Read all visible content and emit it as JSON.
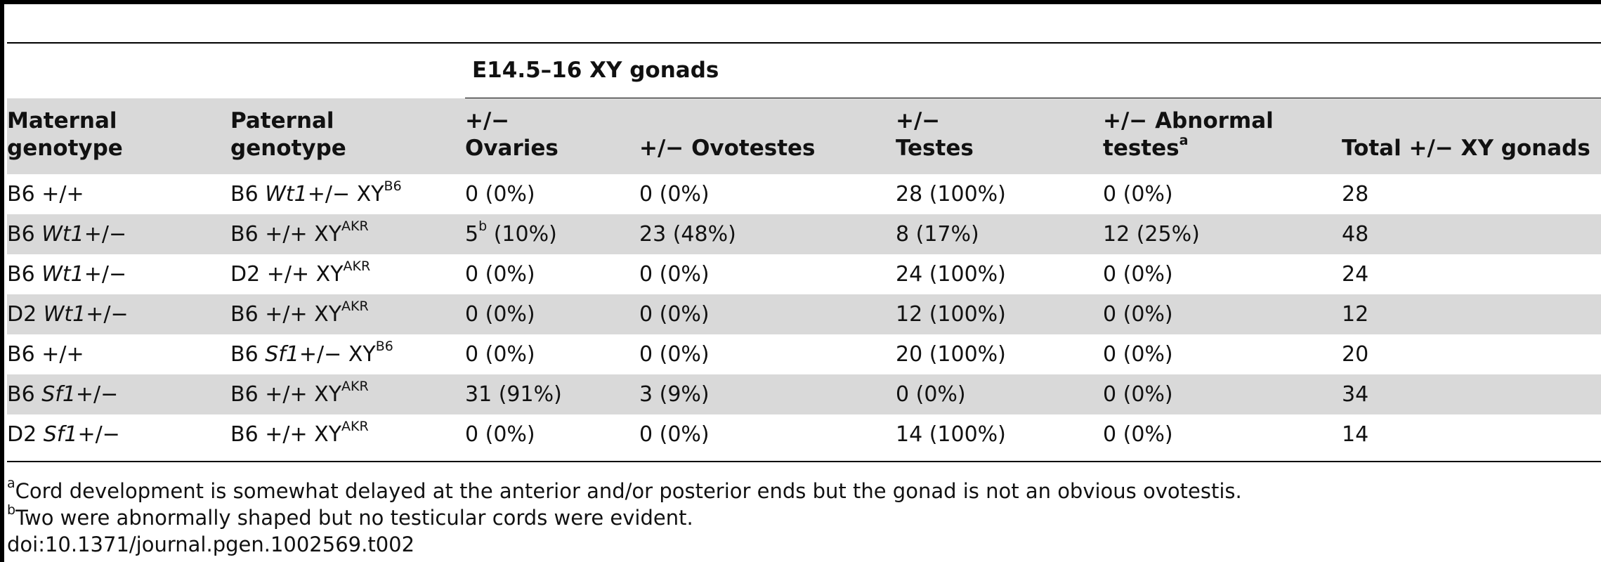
{
  "table": {
    "spanner": "E14.5–16 XY gonads",
    "headers": {
      "maternal": [
        "Maternal",
        "genotype"
      ],
      "paternal": [
        "Paternal",
        "genotype"
      ],
      "ovaries": [
        "+/−",
        "Ovaries"
      ],
      "ovotestes": "+/− Ovotestes",
      "testes": [
        "+/−",
        "Testes"
      ],
      "abnormal": [
        "+/− Abnormal",
        "testes",
        "a"
      ],
      "total": "Total +/− XY gonads"
    },
    "rows": [
      {
        "mat_pre": "B6 ",
        "mat_it": "",
        "mat_post": "+/+",
        "pat_pre": "B6 ",
        "pat_it": "Wt1",
        "pat_post": "+/− XY",
        "pat_sup": "B6",
        "ov": "0 (0%)",
        "ov_sup": "",
        "ov_post": "",
        "ovt": "0 (0%)",
        "tes": "28 (100%)",
        "abn": "0 (0%)",
        "tot": "28"
      },
      {
        "mat_pre": "B6 ",
        "mat_it": "Wt1",
        "mat_post": "+/−",
        "pat_pre": "B6 ",
        "pat_it": "",
        "pat_post": "+/+ XY",
        "pat_sup": "AKR",
        "ov": "5",
        "ov_sup": "b",
        "ov_post": " (10%)",
        "ovt": "23 (48%)",
        "tes": "8 (17%)",
        "abn": "12 (25%)",
        "tot": "48"
      },
      {
        "mat_pre": "B6 ",
        "mat_it": "Wt1",
        "mat_post": "+/−",
        "pat_pre": "D2 ",
        "pat_it": "",
        "pat_post": "+/+ XY",
        "pat_sup": "AKR",
        "ov": "0 (0%)",
        "ov_sup": "",
        "ov_post": "",
        "ovt": "0 (0%)",
        "tes": "24 (100%)",
        "abn": "0 (0%)",
        "tot": "24"
      },
      {
        "mat_pre": "D2 ",
        "mat_it": "Wt1",
        "mat_post": "+/−",
        "pat_pre": "B6 ",
        "pat_it": "",
        "pat_post": "+/+ XY",
        "pat_sup": "AKR",
        "ov": "0 (0%)",
        "ov_sup": "",
        "ov_post": "",
        "ovt": "0 (0%)",
        "tes": "12 (100%)",
        "abn": "0 (0%)",
        "tot": "12"
      },
      {
        "mat_pre": "B6 ",
        "mat_it": "",
        "mat_post": "+/+",
        "pat_pre": "B6 ",
        "pat_it": "Sf1",
        "pat_post": "+/− XY",
        "pat_sup": "B6",
        "ov": "0 (0%)",
        "ov_sup": "",
        "ov_post": "",
        "ovt": "0 (0%)",
        "tes": "20 (100%)",
        "abn": "0 (0%)",
        "tot": "20"
      },
      {
        "mat_pre": "B6 ",
        "mat_it": "Sf1",
        "mat_post": "+/−",
        "pat_pre": "B6 ",
        "pat_it": "",
        "pat_post": "+/+ XY",
        "pat_sup": "AKR",
        "ov": "31 (91%)",
        "ov_sup": "",
        "ov_post": "",
        "ovt": "3 (9%)",
        "tes": "0 (0%)",
        "abn": "0 (0%)",
        "tot": "34"
      },
      {
        "mat_pre": "D2 ",
        "mat_it": "Sf1",
        "mat_post": "+/−",
        "pat_pre": "B6 ",
        "pat_it": "",
        "pat_post": "+/+ XY",
        "pat_sup": "AKR",
        "ov": "0 (0%)",
        "ov_sup": "",
        "ov_post": "",
        "ovt": "0 (0%)",
        "tes": "14 (100%)",
        "abn": "0 (0%)",
        "tot": "14"
      }
    ]
  },
  "footnotes": {
    "a_mark": "a",
    "a_text": "Cord development is somewhat delayed at the anterior and/or posterior ends but the gonad is not an obvious ovotestis.",
    "b_mark": "b",
    "b_text": "Two were abnormally shaped but no testicular cords were evident.",
    "doi": "doi:10.1371/journal.pgen.1002569.t002"
  },
  "colors": {
    "header_fill": "#d9d9d9",
    "row_shade": "#d9d9d9",
    "rules": "#000000"
  }
}
